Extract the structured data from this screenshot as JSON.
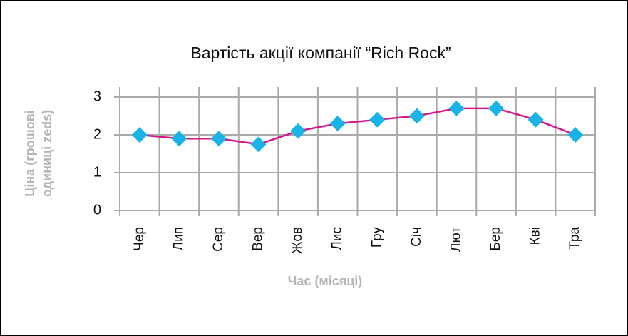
{
  "chart_data": {
    "type": "line",
    "title": "Вартість акції компанії “Rich Rock”",
    "xlabel": "Час (місяці)",
    "ylabel": [
      "Ціна (грошові",
      "одиниці zeds)"
    ],
    "categories": [
      "Чер",
      "Лип",
      "Сер",
      "Вер",
      "Жов",
      "Лис",
      "Гру",
      "Січ",
      "Лют",
      "Бер",
      "Кві",
      "Тра"
    ],
    "series": [
      {
        "color": "#d4198c",
        "marker_color": "#1ab3e6",
        "values": [
          2.0,
          1.9,
          1.9,
          1.75,
          2.1,
          2.3,
          2.4,
          2.5,
          2.7,
          2.7,
          2.4,
          2.0
        ]
      }
    ],
    "ylim": [
      0,
      3
    ],
    "yticks": [
      0,
      1,
      2,
      3
    ],
    "grid": true
  }
}
